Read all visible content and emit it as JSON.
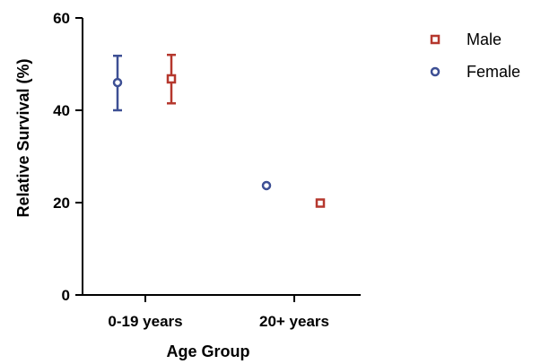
{
  "chart_data": {
    "type": "scatter",
    "xlabel": "Age Group",
    "ylabel": "Relative Survival (%)",
    "categories": [
      "0-19 years",
      "20+ years"
    ],
    "ylim": [
      0,
      60
    ],
    "yticks": [
      0,
      20,
      40,
      60
    ],
    "grid": false,
    "legend_position": "top-right",
    "series": [
      {
        "name": "Male",
        "marker": "square",
        "color": "#b5372d",
        "values": [
          46.8,
          19.9
        ],
        "error_low": [
          41.5,
          19.9
        ],
        "error_high": [
          52.0,
          19.9
        ]
      },
      {
        "name": "Female",
        "marker": "circle",
        "color": "#3d4f94",
        "values": [
          46.0,
          23.7
        ],
        "error_low": [
          40.0,
          23.7
        ],
        "error_high": [
          51.8,
          23.7
        ]
      }
    ]
  }
}
